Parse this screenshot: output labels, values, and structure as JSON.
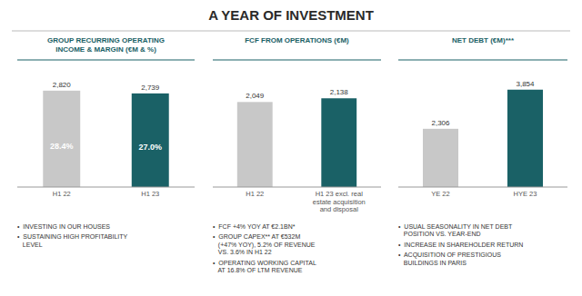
{
  "title": "A YEAR OF INVESTMENT",
  "chart_data": [
    {
      "type": "bar",
      "subtitle": "GROUP RECURRING OPERATING\nINCOME & MARGIN (€M & %)",
      "categories": [
        "H1 22",
        "H1 23"
      ],
      "values": [
        2820,
        2739
      ],
      "value_labels": [
        "2,820",
        "2,739"
      ],
      "inner_labels": [
        "28.4%",
        "27.0%"
      ],
      "colors": [
        "#c8c8c8",
        "#1a6166"
      ],
      "ylim": [
        0,
        3400
      ],
      "data_labels": true,
      "tick_labels": "x",
      "annotations": [
        "•  INVESTING IN OUR HOUSES",
        "•  SUSTAINING HIGH PROFITABILITY\n   LEVEL"
      ]
    },
    {
      "type": "bar",
      "subtitle": "FCF FROM OPERATIONS (€M)",
      "categories": [
        "H1 22",
        "H1 23 excl. real\nestate acquisition\nand disposal"
      ],
      "values": [
        2049,
        2138
      ],
      "value_labels": [
        "2,049",
        "2,138"
      ],
      "colors": [
        "#c8c8c8",
        "#1a6166"
      ],
      "ylim": [
        0,
        2800
      ],
      "data_labels": true,
      "tick_labels": "x",
      "annotations": [
        "•  FCF +4% YOY AT €2.1BN*",
        "•  GROUP CAPEX** AT €532M\n   (+47% YOY), 5.2% OF REVENUE\n   VS. 3.6% IN H1 22",
        "•  OPERATING WORKING CAPITAL\n   AT 16.8% OF LTM REVENUE"
      ]
    },
    {
      "type": "bar",
      "subtitle": "NET DEBT (€M)***",
      "categories": [
        "YE 22",
        "HYE 23"
      ],
      "values": [
        2306,
        3854
      ],
      "value_labels": [
        "2,306",
        "3,854"
      ],
      "colors": [
        "#c8c8c8",
        "#1a6166"
      ],
      "ylim": [
        0,
        4600
      ],
      "data_labels": true,
      "tick_labels": "x",
      "annotations": [
        "•  USUAL SEASONALITY IN NET DEBT\n   POSITION VS. YEAR-END",
        "•  INCREASE IN SHAREHOLDER RETURN",
        "•  ACQUISITION OF PRESTIGIOUS\n   BUILDINGS IN PARIS"
      ]
    }
  ]
}
